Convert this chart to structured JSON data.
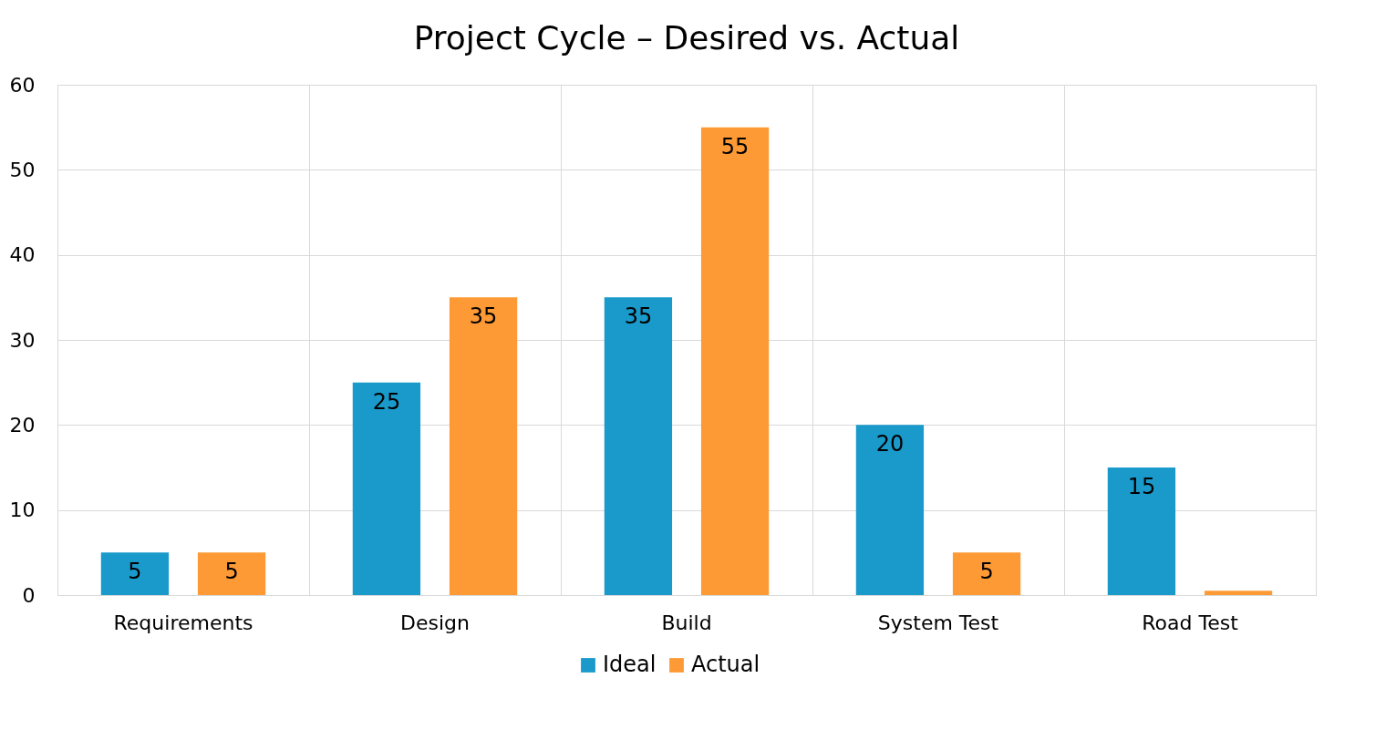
{
  "chart_data": {
    "type": "bar",
    "title": "Project Cycle – Desired vs. Actual",
    "categories": [
      "Requirements",
      "Design",
      "Build",
      "System Test",
      "Road Test"
    ],
    "series": [
      {
        "name": "Ideal",
        "color": "#1a9acb",
        "values": [
          5,
          25,
          35,
          20,
          15
        ],
        "value_labels": [
          "5",
          "25",
          "35",
          "20",
          "15"
        ]
      },
      {
        "name": "Actual",
        "color": "#fd9a35",
        "values": [
          5,
          35,
          55,
          5,
          0.5
        ],
        "value_labels": [
          "5",
          "35",
          "55",
          "5",
          null
        ]
      }
    ],
    "ylim": [
      0,
      60
    ],
    "yticks": [
      0,
      10,
      20,
      30,
      40,
      50,
      60
    ],
    "grid": true,
    "legend": "bottom"
  }
}
